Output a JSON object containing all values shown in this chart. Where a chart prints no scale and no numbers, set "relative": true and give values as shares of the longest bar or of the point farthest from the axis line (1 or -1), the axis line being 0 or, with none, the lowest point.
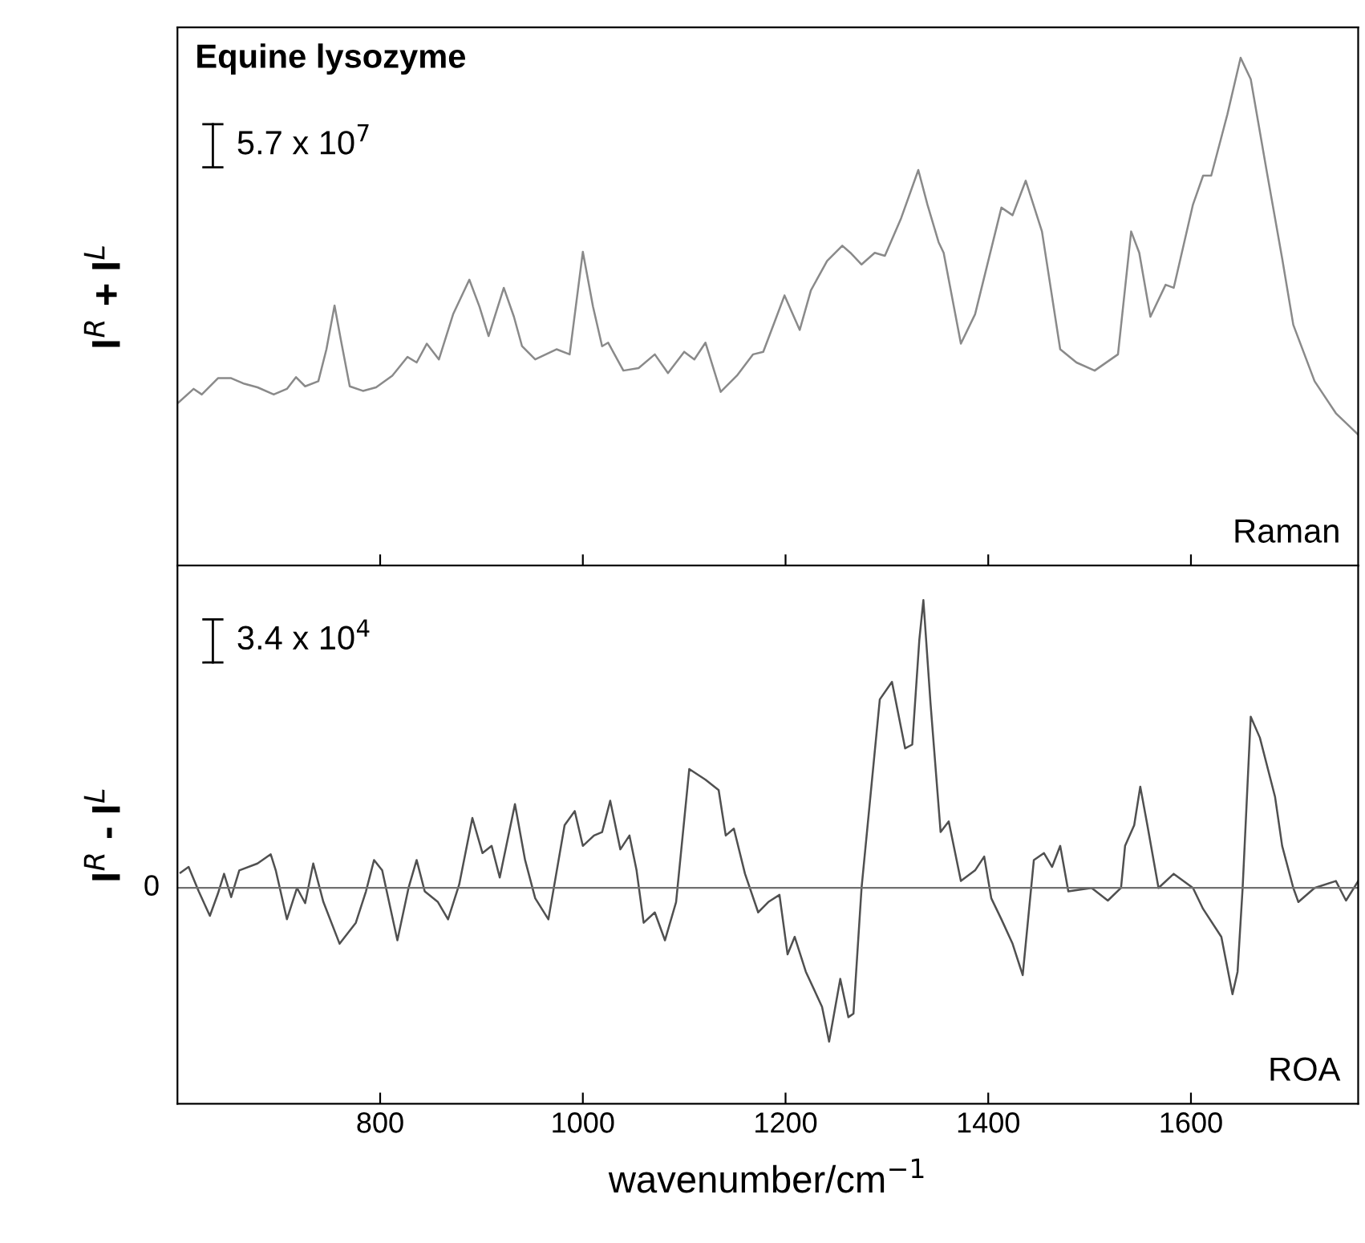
{
  "chart_data": [
    {
      "type": "line",
      "relative": true,
      "title": "Equine lysozyme",
      "ylabel": "I$^{R}$ + I$^{L}$",
      "xlim": [
        600,
        1765
      ],
      "tick_labels": false,
      "grid": false,
      "annotations": [
        "5.7 x 10$^{7}$",
        "Raman"
      ],
      "series": [
        {
          "color": "#8a8a8a",
          "x": [
            601,
            616,
            624,
            640,
            653,
            666,
            679,
            695,
            708,
            717,
            726,
            739,
            747,
            755,
            761,
            770,
            783,
            796,
            812,
            827,
            836,
            846,
            858,
            872,
            888,
            898,
            907,
            922,
            932,
            940,
            953,
            974,
            987,
            1000,
            1010,
            1019,
            1025,
            1040,
            1055,
            1071,
            1084,
            1100,
            1110,
            1121,
            1136,
            1152,
            1168,
            1178,
            1189,
            1199,
            1214,
            1225,
            1241,
            1256,
            1264,
            1275,
            1288,
            1298,
            1314,
            1331,
            1340,
            1351,
            1356,
            1373,
            1387,
            1413,
            1424,
            1437,
            1453,
            1471,
            1487,
            1505,
            1528,
            1541,
            1549,
            1560,
            1575,
            1583,
            1602,
            1612,
            1620,
            1636,
            1649,
            1659,
            1675,
            1690,
            1701,
            1722,
            1743,
            1765
          ],
          "values": [
            0.321,
            0.348,
            0.337,
            0.369,
            0.369,
            0.358,
            0.351,
            0.337,
            0.348,
            0.371,
            0.353,
            0.363,
            0.426,
            0.512,
            0.447,
            0.353,
            0.344,
            0.351,
            0.374,
            0.411,
            0.4,
            0.437,
            0.406,
            0.495,
            0.563,
            0.51,
            0.452,
            0.547,
            0.49,
            0.432,
            0.406,
            0.426,
            0.416,
            0.618,
            0.51,
            0.432,
            0.439,
            0.384,
            0.389,
            0.416,
            0.379,
            0.421,
            0.406,
            0.439,
            0.342,
            0.374,
            0.416,
            0.421,
            0.479,
            0.532,
            0.464,
            0.542,
            0.6,
            0.63,
            0.616,
            0.593,
            0.616,
            0.61,
            0.684,
            0.779,
            0.711,
            0.637,
            0.616,
            0.437,
            0.495,
            0.705,
            0.69,
            0.758,
            0.658,
            0.426,
            0.4,
            0.384,
            0.416,
            0.658,
            0.616,
            0.49,
            0.553,
            0.547,
            0.711,
            0.768,
            0.768,
            0.889,
            1.0,
            0.958,
            0.774,
            0.605,
            0.474,
            0.363,
            0.3,
            0.258
          ]
        }
      ]
    },
    {
      "type": "line",
      "relative": true,
      "xlabel": "wavenumber/cm$^{−1}$",
      "ylabel": "I$^{R}$ - I$^{L}$",
      "xlim": [
        600,
        1765
      ],
      "xticks": [
        800,
        1000,
        1200,
        1400,
        1600
      ],
      "tick_labels": "x",
      "grid": false,
      "annotations": [
        "3.4 x 10$^{4}$",
        "ROA"
      ],
      "ref_lines": [
        {
          "axis": "y",
          "value": 0,
          "label": "0",
          "color": "#707070"
        }
      ],
      "series": [
        {
          "color": "#505050",
          "x": [
            603,
            611,
            621,
            632,
            640,
            646,
            653,
            661,
            679,
            692,
            697,
            708,
            718,
            726,
            734,
            744,
            760,
            776,
            786,
            794,
            802,
            817,
            828,
            836,
            844,
            857,
            867,
            878,
            891,
            901,
            910,
            918,
            933,
            943,
            953,
            966,
            982,
            992,
            1000,
            1011,
            1019,
            1027,
            1037,
            1046,
            1053,
            1060,
            1071,
            1081,
            1092,
            1105,
            1121,
            1134,
            1141,
            1149,
            1160,
            1173,
            1183,
            1194,
            1202,
            1209,
            1220,
            1236,
            1243,
            1254,
            1262,
            1267,
            1275,
            1293,
            1305,
            1318,
            1325,
            1332,
            1336,
            1343,
            1353,
            1361,
            1373,
            1387,
            1396,
            1403,
            1413,
            1424,
            1434,
            1445,
            1455,
            1463,
            1471,
            1479,
            1502,
            1518,
            1531,
            1535,
            1544,
            1550,
            1557,
            1568,
            1583,
            1602,
            1612,
            1630,
            1641,
            1646,
            1651,
            1659,
            1668,
            1683,
            1690,
            1701,
            1706,
            1722,
            1743,
            1753,
            1765
          ],
          "values": [
            0.053,
            0.073,
            -0.012,
            -0.097,
            -0.019,
            0.049,
            -0.032,
            0.061,
            0.085,
            0.117,
            0.061,
            -0.109,
            0,
            -0.053,
            0.085,
            -0.049,
            -0.194,
            -0.121,
            -0.012,
            0.097,
            0.061,
            -0.182,
            0,
            0.097,
            -0.012,
            -0.049,
            -0.109,
            0.012,
            0.243,
            0.121,
            0.146,
            0.036,
            0.291,
            0.097,
            -0.036,
            -0.109,
            0.218,
            0.267,
            0.146,
            0.182,
            0.194,
            0.303,
            0.134,
            0.182,
            0.061,
            -0.121,
            -0.085,
            -0.182,
            -0.049,
            0.413,
            0.376,
            0.34,
            0.182,
            0.206,
            0.049,
            -0.085,
            -0.049,
            -0.024,
            -0.231,
            -0.17,
            -0.291,
            -0.413,
            -0.534,
            -0.316,
            -0.449,
            -0.437,
            0,
            0.655,
            0.716,
            0.485,
            0.498,
            0.862,
            1.0,
            0.643,
            0.194,
            0.231,
            0.024,
            0.061,
            0.109,
            -0.036,
            -0.109,
            -0.194,
            -0.303,
            0.097,
            0.121,
            0.073,
            0.146,
            -0.012,
            0,
            -0.044,
            0,
            0.146,
            0.218,
            0.352,
            0.218,
            0,
            0.049,
            0,
            -0.073,
            -0.17,
            -0.369,
            -0.291,
            0,
            0.595,
            0.522,
            0.316,
            0.146,
            0,
            -0.049,
            0,
            0.024,
            -0.044,
            0.024
          ]
        }
      ]
    }
  ]
}
